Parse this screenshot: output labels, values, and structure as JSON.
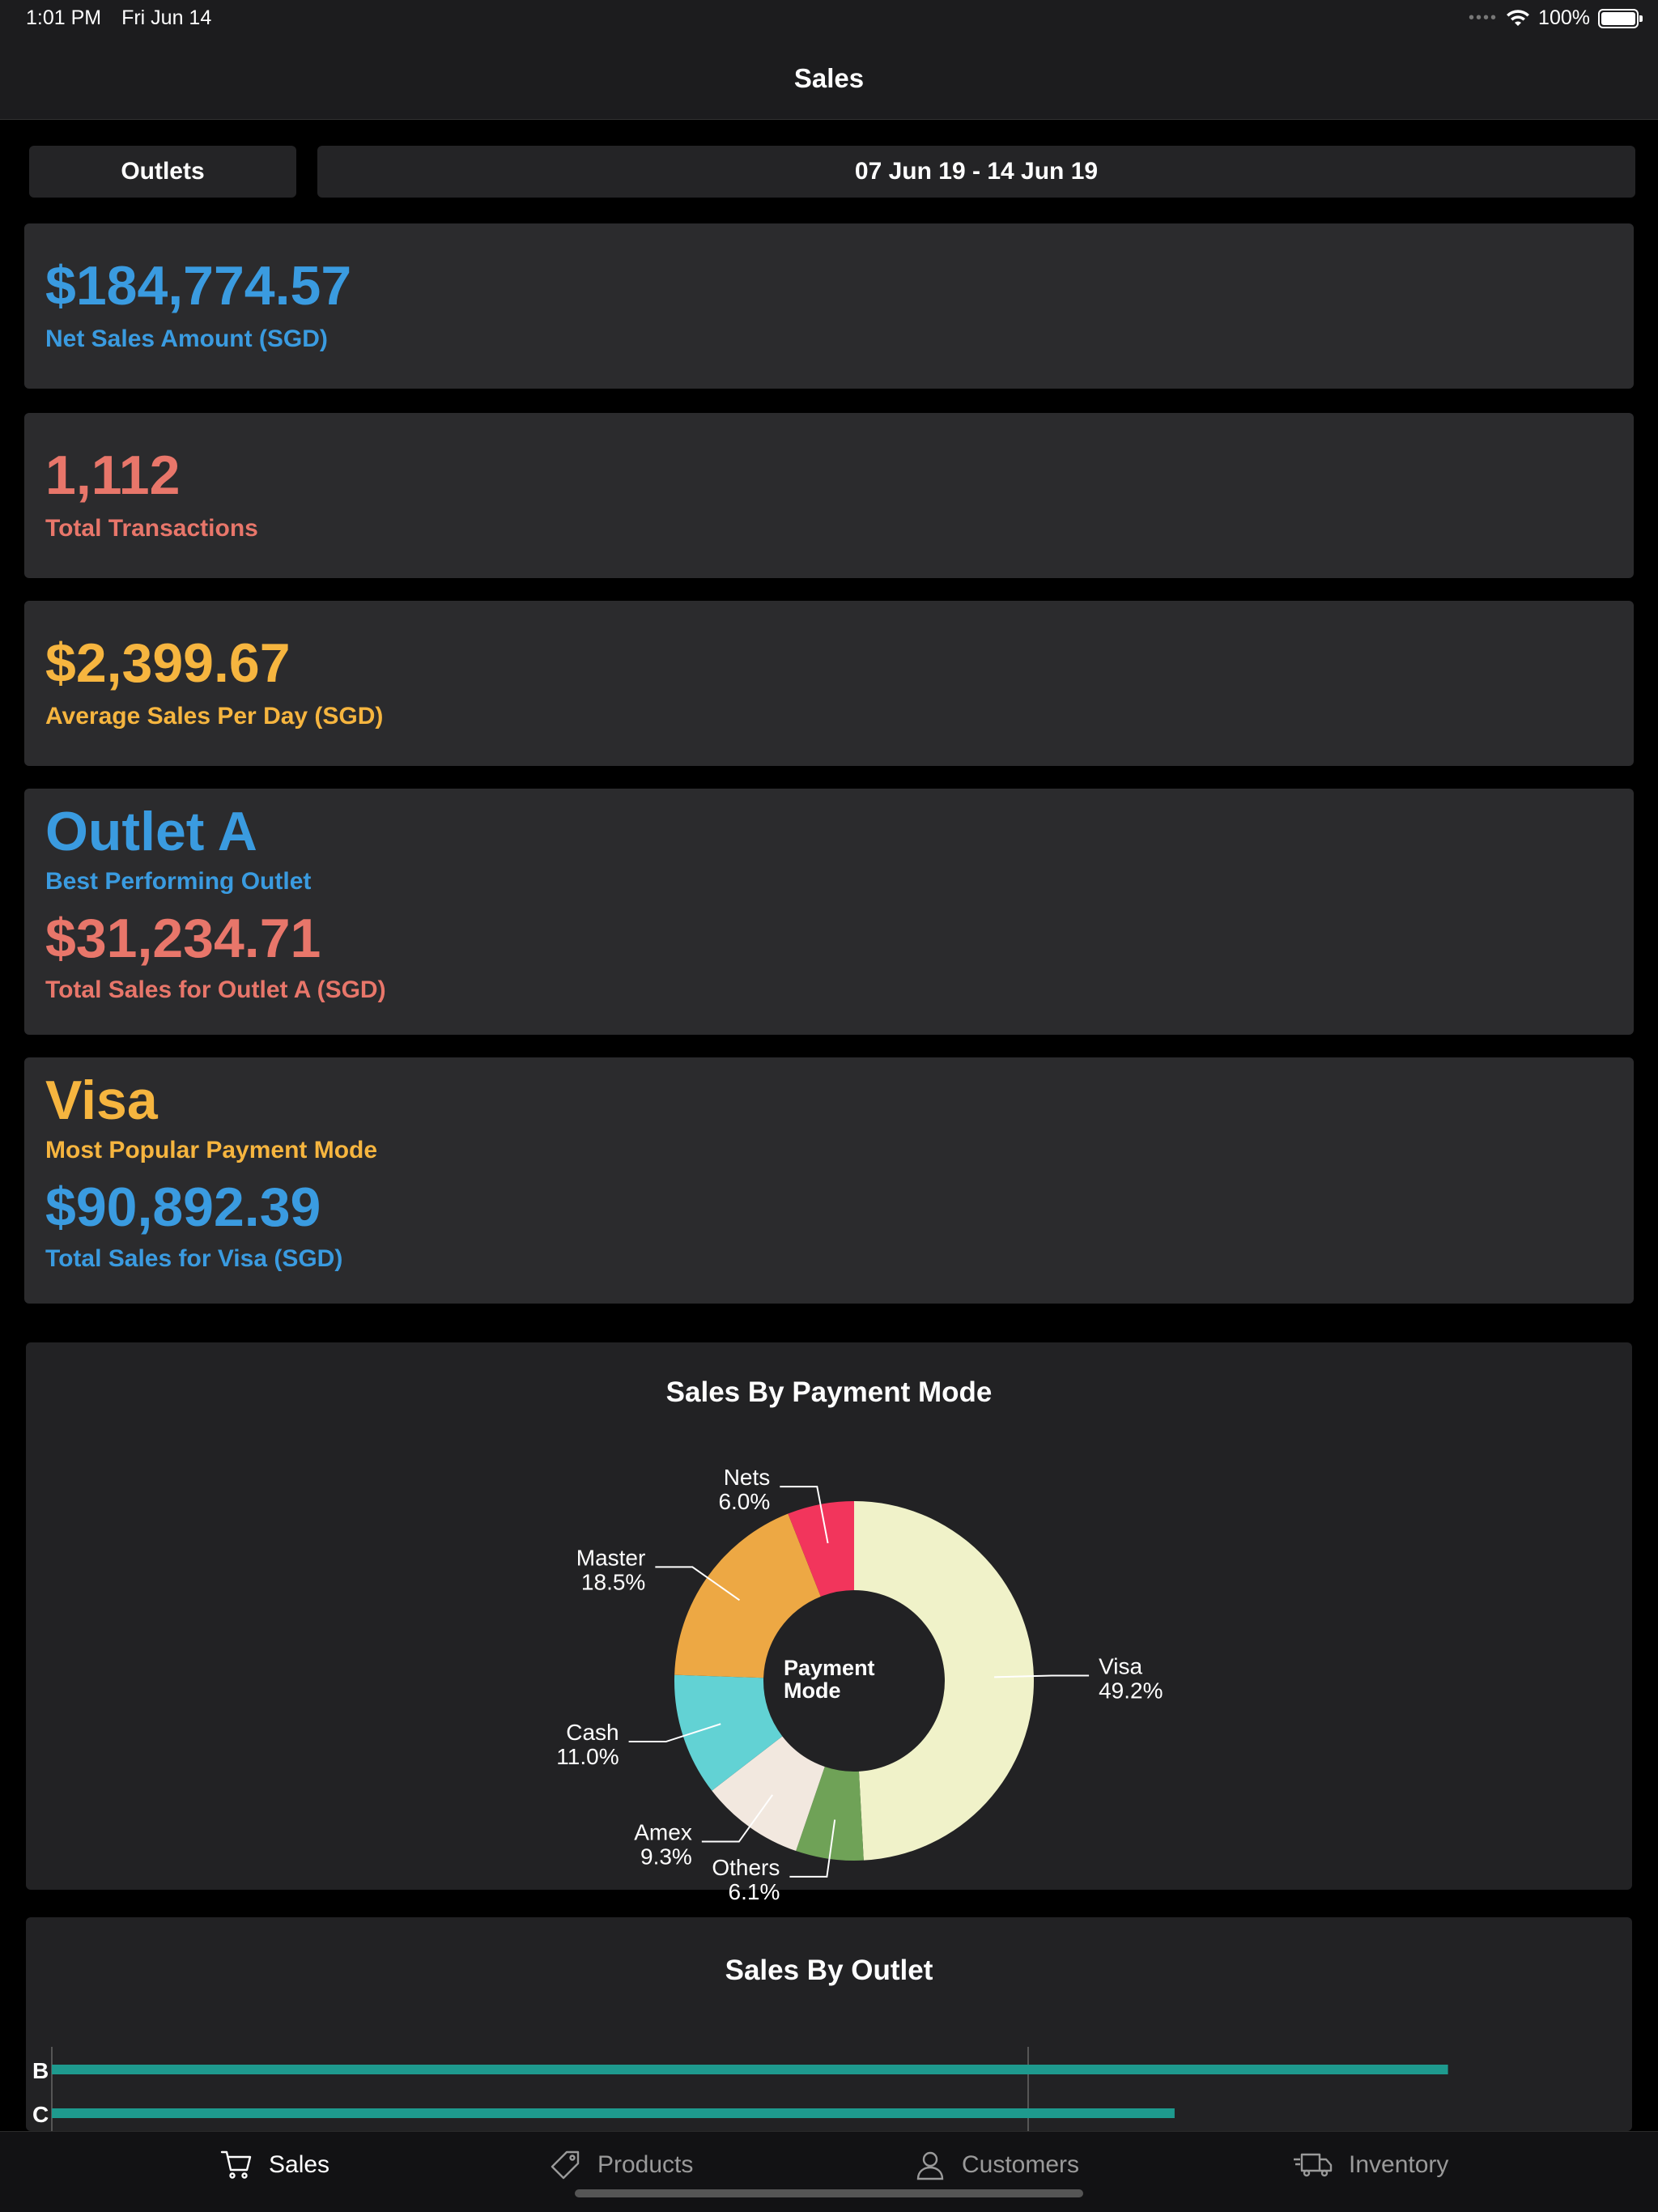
{
  "status_bar": {
    "time": "1:01 PM",
    "date": "Fri Jun 14",
    "battery": "100%"
  },
  "nav": {
    "title": "Sales"
  },
  "filters": {
    "outlets_label": "Outlets",
    "date_range": "07 Jun 19 - 14 Jun 19"
  },
  "stats": {
    "net_sales": {
      "value": "$184,774.57",
      "label": "Net Sales Amount (SGD)"
    },
    "transactions": {
      "value": "1,112",
      "label": "Total Transactions"
    },
    "avg_sales": {
      "value": "$2,399.67",
      "label": "Average Sales Per Day (SGD)"
    },
    "best_outlet": {
      "name": "Outlet A",
      "name_label": "Best Performing Outlet",
      "value": "$31,234.71",
      "value_label": "Total Sales for Outlet A (SGD)"
    },
    "popular_payment": {
      "name": "Visa",
      "name_label": "Most Popular Payment Mode",
      "value": "$90,892.39",
      "value_label": "Total Sales for Visa (SGD)"
    }
  },
  "colors": {
    "blue": "#3a9be0",
    "salmon": "#e8766a",
    "yellow": "#f6b53f",
    "bar": "#1e9a8e"
  },
  "chart_data": [
    {
      "type": "pie",
      "title": "Sales By Payment Mode",
      "center_label": [
        "Payment",
        "Mode"
      ],
      "slices": [
        {
          "name": "Visa",
          "percent_label": "49.2%",
          "value": 49.2,
          "color": "#f0f2c9"
        },
        {
          "name": "Others",
          "percent_label": "6.1%",
          "value": 6.1,
          "color": "#6fa257"
        },
        {
          "name": "Amex",
          "percent_label": "9.3%",
          "value": 9.3,
          "color": "#f2e8df"
        },
        {
          "name": "Cash",
          "percent_label": "11.0%",
          "value": 11.0,
          "color": "#62d2d4"
        },
        {
          "name": "Master",
          "percent_label": "18.5%",
          "value": 18.5,
          "color": "#eda844"
        },
        {
          "name": "Nets",
          "percent_label": "6.0%",
          "value": 6.0,
          "color": "#f2355c"
        }
      ]
    },
    {
      "type": "bar",
      "orientation": "horizontal",
      "title": "Sales By Outlet",
      "categories": [
        "B",
        "C"
      ],
      "values": [
        1.43,
        1.15
      ],
      "reference_line": 1
    }
  ],
  "tabs": [
    {
      "label": "Sales",
      "icon": "cart-icon",
      "active": true
    },
    {
      "label": "Products",
      "icon": "tag-icon",
      "active": false
    },
    {
      "label": "Customers",
      "icon": "person-icon",
      "active": false
    },
    {
      "label": "Inventory",
      "icon": "truck-icon",
      "active": false
    }
  ]
}
